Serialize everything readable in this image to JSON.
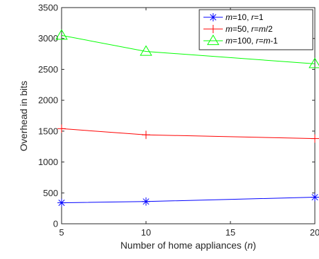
{
  "chart_data": {
    "type": "line",
    "xlabel": "Number of home appliances (",
    "xlabel_var": "n",
    "xlabel_close": ")",
    "ylabel": "Overhead in bits",
    "xlim": [
      5,
      20
    ],
    "ylim": [
      0,
      3500
    ],
    "x_ticks": [
      "5",
      "10",
      "15",
      "20"
    ],
    "y_ticks": [
      "0",
      "500",
      "1000",
      "1500",
      "2000",
      "2500",
      "3000",
      "3500"
    ],
    "grid": false,
    "legend_position": "top-right",
    "x": [
      5,
      10,
      20
    ],
    "series": [
      {
        "legend": [
          {
            "text": "m",
            "italic": true
          },
          {
            "text": "=10, ",
            "italic": false
          },
          {
            "text": "r",
            "italic": true
          },
          {
            "text": "=1",
            "italic": false
          }
        ],
        "values": [
          340,
          360,
          430
        ],
        "color": "#0000ff",
        "marker": "asterisk"
      },
      {
        "legend": [
          {
            "text": "m",
            "italic": true
          },
          {
            "text": "=50, ",
            "italic": false
          },
          {
            "text": "r",
            "italic": true
          },
          {
            "text": "=",
            "italic": false
          },
          {
            "text": "m",
            "italic": true
          },
          {
            "text": "/2",
            "italic": false
          }
        ],
        "values": [
          1540,
          1440,
          1380
        ],
        "color": "#ff0000",
        "marker": "plus"
      },
      {
        "legend": [
          {
            "text": "m",
            "italic": true
          },
          {
            "text": "=100, ",
            "italic": false
          },
          {
            "text": "r",
            "italic": true
          },
          {
            "text": "=",
            "italic": false
          },
          {
            "text": "m",
            "italic": true
          },
          {
            "text": "-1",
            "italic": false
          }
        ],
        "values": [
          3050,
          2790,
          2590
        ],
        "color": "#00ff00",
        "marker": "triangle"
      }
    ]
  }
}
